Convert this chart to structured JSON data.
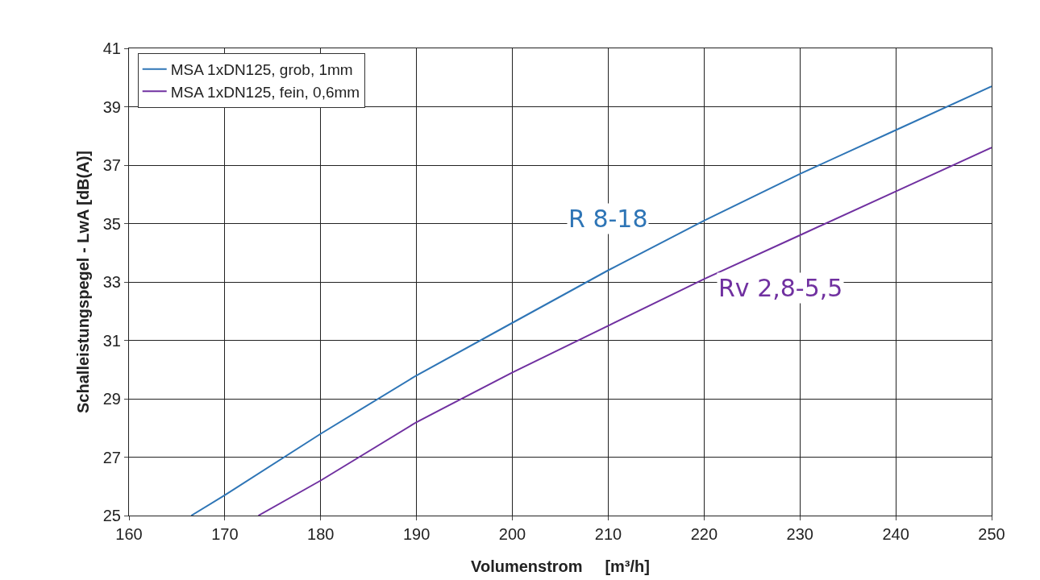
{
  "chart_data": {
    "type": "line",
    "xlabel": "Volumenstrom     [m³/h]",
    "ylabel": "Schalleistungspegel - LwA [dB(A)]",
    "xlim": [
      160,
      250
    ],
    "xticks": [
      160,
      170,
      180,
      190,
      200,
      210,
      220,
      230,
      240,
      250
    ],
    "ylim": [
      25,
      41
    ],
    "yticks": [
      25,
      27,
      29,
      31,
      33,
      35,
      37,
      39,
      41
    ],
    "grid": true,
    "legend": "top left",
    "line_style": "solid",
    "series": [
      {
        "name": "MSA 1xDN125, grob, 1mm",
        "color": "#2e75b6",
        "x": [
          166.5,
          170,
          180,
          190,
          200,
          210,
          220,
          230,
          240,
          250
        ],
        "values": [
          25,
          25.7,
          27.8,
          29.8,
          31.6,
          33.4,
          35.1,
          36.7,
          38.2,
          39.7
        ]
      },
      {
        "name": "MSA 1xDN125, fein, 0,6mm",
        "color": "#7030a0",
        "x": [
          173.5,
          180,
          190,
          200,
          210,
          220,
          230,
          240,
          250
        ],
        "values": [
          25,
          26.2,
          28.2,
          29.9,
          31.5,
          33.1,
          34.6,
          36.1,
          37.6
        ]
      }
    ],
    "annotations": [
      {
        "text": "R 8-18",
        "x": 210,
        "y": 33.4
      },
      {
        "text": "Rv 2,8-5,5",
        "x": 228,
        "y": 34.3
      }
    ]
  }
}
